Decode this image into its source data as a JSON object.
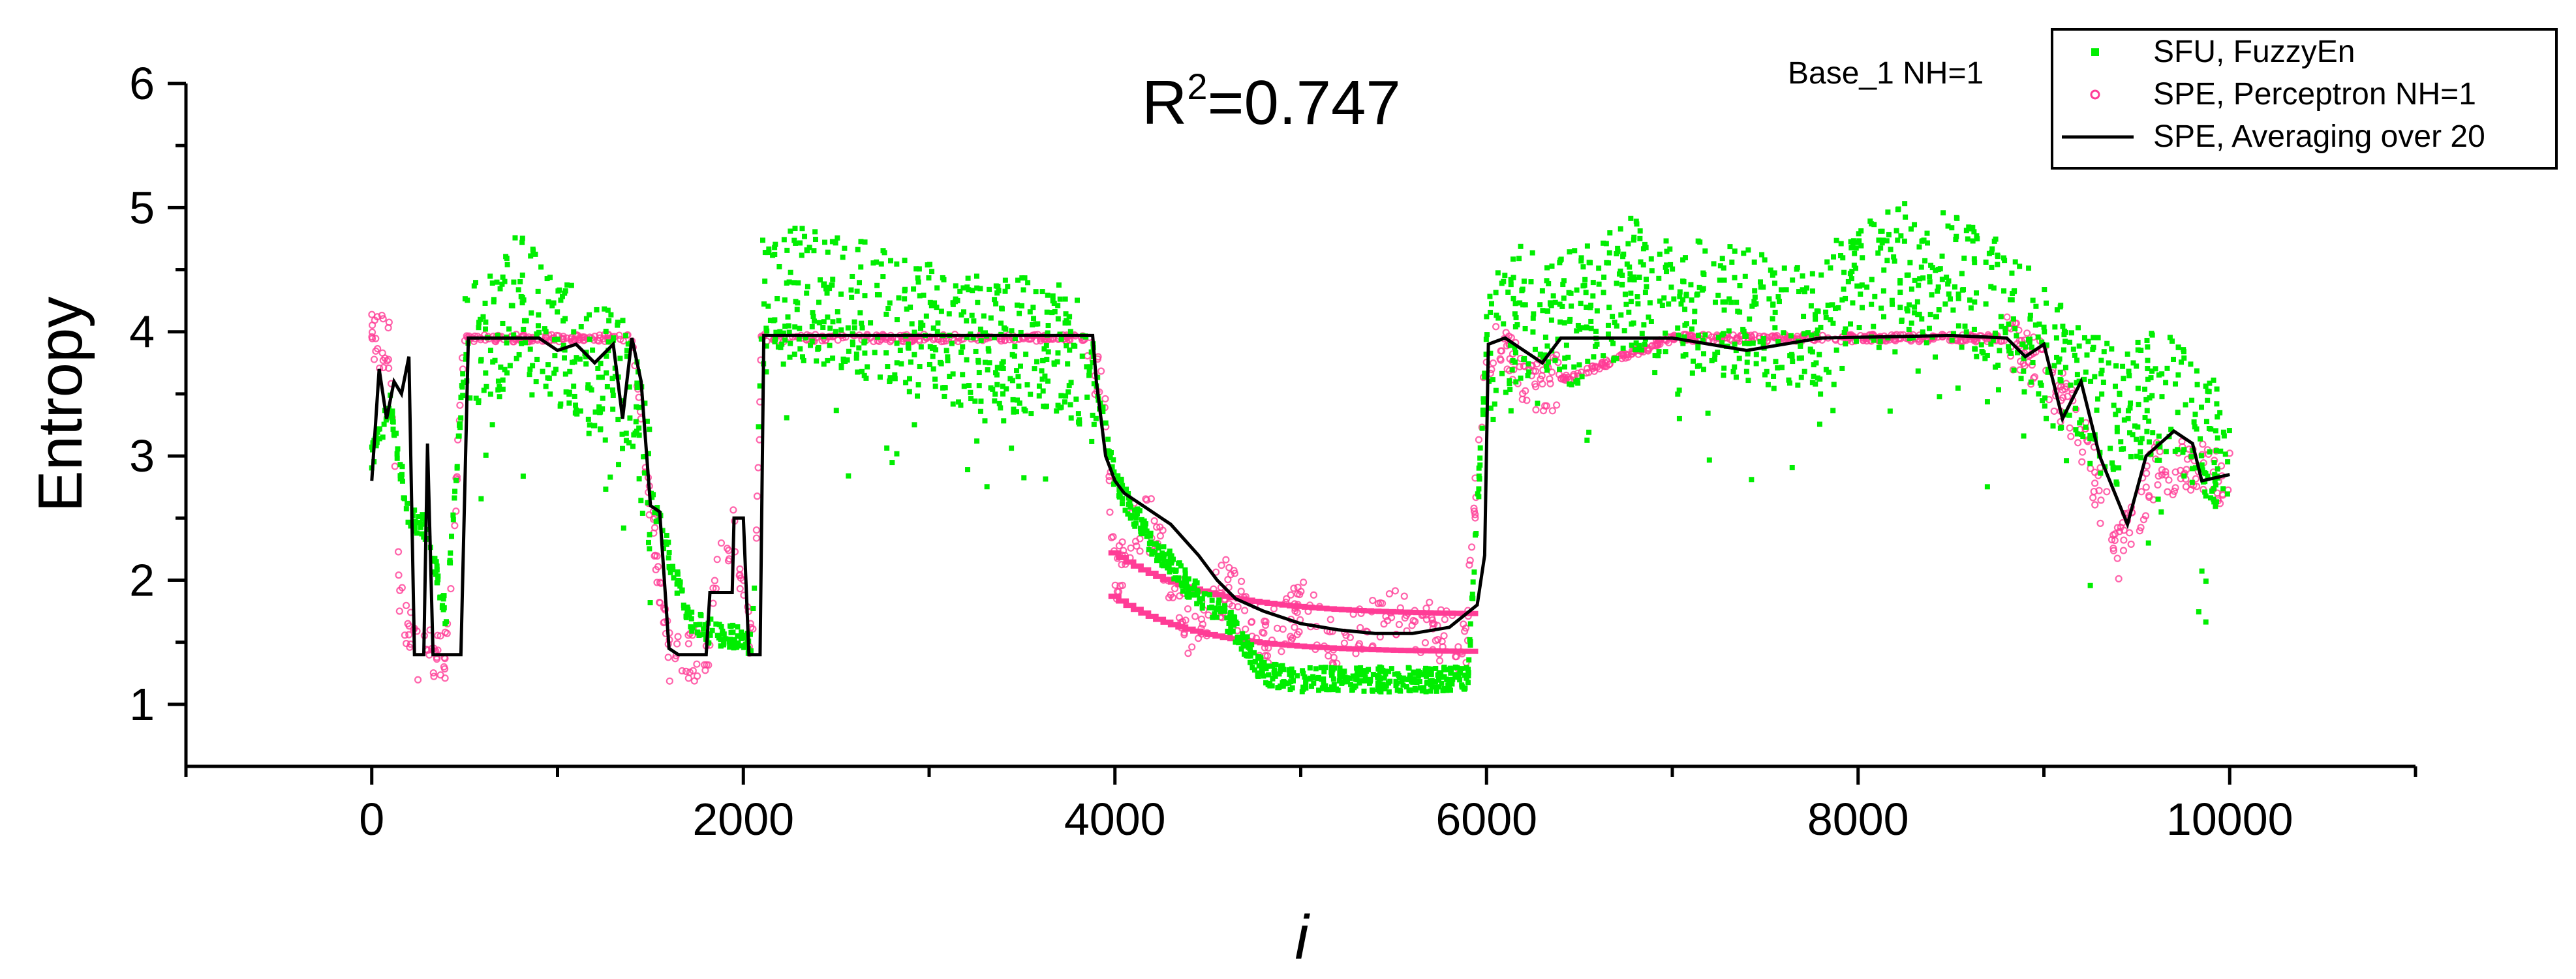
{
  "chart_data": {
    "type": "scatter",
    "title": "R2=0.747",
    "r2_label": "R",
    "r2_sup": "2",
    "r2_value": "=0.747",
    "annotation": "Base_1 NH=1",
    "xlabel": "i",
    "ylabel": "Entropy",
    "xlim": [
      -1000,
      11000
    ],
    "ylim": [
      0.5,
      6
    ],
    "xticks": [
      0,
      2000,
      4000,
      6000,
      8000,
      10000
    ],
    "xtick_labels": [
      "0",
      "2000",
      "4000",
      "6000",
      "8000",
      "10000"
    ],
    "yticks": [
      1,
      2,
      3,
      4,
      5,
      6
    ],
    "ytick_labels": [
      "1",
      "2",
      "3",
      "4",
      "5",
      "6"
    ],
    "legend_position": "top-right",
    "series": [
      {
        "name": "SFU, FuzzyEn",
        "kind": "scatter-square",
        "color": "#00ee00",
        "points_summary": [
          [
            0,
            3.0
          ],
          [
            100,
            3.4
          ],
          [
            200,
            2.5
          ],
          [
            300,
            2.4
          ],
          [
            400,
            1.7
          ],
          [
            500,
            3.8
          ],
          [
            700,
            4.0
          ],
          [
            800,
            4.3
          ],
          [
            1000,
            3.9
          ],
          [
            1200,
            3.7
          ],
          [
            1400,
            3.5
          ],
          [
            1500,
            2.7
          ],
          [
            1600,
            2.2
          ],
          [
            1700,
            1.7
          ],
          [
            1800,
            1.6
          ],
          [
            1900,
            1.55
          ],
          [
            2050,
            1.5
          ],
          [
            2100,
            4.2
          ],
          [
            2300,
            4.3
          ],
          [
            2600,
            4.2
          ],
          [
            3000,
            4.0
          ],
          [
            3200,
            3.9
          ],
          [
            3500,
            3.9
          ],
          [
            3800,
            3.8
          ],
          [
            3900,
            3.6
          ],
          [
            4000,
            2.8
          ],
          [
            4200,
            2.3
          ],
          [
            4400,
            1.95
          ],
          [
            4600,
            1.7
          ],
          [
            4800,
            1.25
          ],
          [
            5000,
            1.2
          ],
          [
            5500,
            1.2
          ],
          [
            5900,
            1.2
          ],
          [
            6000,
            3.9
          ],
          [
            6200,
            4.2
          ],
          [
            6500,
            4.1
          ],
          [
            6800,
            4.4
          ],
          [
            7000,
            4.2
          ],
          [
            7300,
            4.2
          ],
          [
            7600,
            4.0
          ],
          [
            8000,
            4.3
          ],
          [
            8200,
            4.5
          ],
          [
            8500,
            4.4
          ],
          [
            8800,
            4.2
          ],
          [
            9000,
            3.8
          ],
          [
            9200,
            3.5
          ],
          [
            9400,
            3.3
          ],
          [
            9600,
            3.5
          ],
          [
            9800,
            3.3
          ],
          [
            10000,
            2.9
          ]
        ]
      },
      {
        "name": "SPE, Perceptron NH=1",
        "kind": "scatter-dot",
        "color": "#ff3c96",
        "points_summary": [
          [
            0,
            3.95
          ],
          [
            100,
            3.9
          ],
          [
            150,
            1.8
          ],
          [
            250,
            1.4
          ],
          [
            400,
            1.4
          ],
          [
            500,
            3.95
          ],
          [
            1000,
            3.95
          ],
          [
            1400,
            3.95
          ],
          [
            1500,
            2.6
          ],
          [
            1600,
            1.4
          ],
          [
            1800,
            1.4
          ],
          [
            1850,
            1.9
          ],
          [
            1950,
            2.5
          ],
          [
            2050,
            1.4
          ],
          [
            2100,
            3.95
          ],
          [
            3000,
            3.95
          ],
          [
            3850,
            3.95
          ],
          [
            3950,
            3.4
          ],
          [
            4000,
            2.0
          ],
          [
            4100,
            2.4
          ],
          [
            4400,
            1.6
          ],
          [
            4800,
            1.5
          ],
          [
            5200,
            1.45
          ],
          [
            5900,
            1.45
          ],
          [
            4200,
            2.45
          ],
          [
            4600,
            1.95
          ],
          [
            5000,
            1.8
          ],
          [
            5500,
            1.75
          ],
          [
            5900,
            1.9
          ],
          [
            6000,
            3.9
          ],
          [
            6300,
            3.55
          ],
          [
            7000,
            3.95
          ],
          [
            8000,
            3.95
          ],
          [
            8800,
            3.95
          ],
          [
            9000,
            3.7
          ],
          [
            9200,
            3.2
          ],
          [
            9400,
            2.2
          ],
          [
            9600,
            2.9
          ],
          [
            9800,
            2.9
          ],
          [
            10000,
            2.8
          ]
        ]
      },
      {
        "name": "SPE, Averaging over 20",
        "kind": "line",
        "color": "#000000",
        "points": [
          [
            0,
            2.8
          ],
          [
            40,
            3.7
          ],
          [
            80,
            3.3
          ],
          [
            120,
            3.6
          ],
          [
            160,
            3.5
          ],
          [
            200,
            3.8
          ],
          [
            230,
            1.4
          ],
          [
            280,
            1.4
          ],
          [
            300,
            3.1
          ],
          [
            330,
            1.4
          ],
          [
            480,
            1.4
          ],
          [
            520,
            3.95
          ],
          [
            900,
            3.95
          ],
          [
            1000,
            3.85
          ],
          [
            1100,
            3.9
          ],
          [
            1200,
            3.75
          ],
          [
            1300,
            3.9
          ],
          [
            1350,
            3.3
          ],
          [
            1400,
            3.95
          ],
          [
            1450,
            3.6
          ],
          [
            1500,
            2.6
          ],
          [
            1550,
            2.55
          ],
          [
            1600,
            1.45
          ],
          [
            1650,
            1.4
          ],
          [
            1800,
            1.4
          ],
          [
            1820,
            1.9
          ],
          [
            1940,
            1.9
          ],
          [
            1950,
            2.5
          ],
          [
            2000,
            2.5
          ],
          [
            2030,
            1.4
          ],
          [
            2090,
            1.4
          ],
          [
            2110,
            3.97
          ],
          [
            3000,
            3.97
          ],
          [
            3880,
            3.97
          ],
          [
            3900,
            3.6
          ],
          [
            3950,
            3.0
          ],
          [
            4000,
            2.8
          ],
          [
            4050,
            2.7
          ],
          [
            4150,
            2.6
          ],
          [
            4300,
            2.45
          ],
          [
            4450,
            2.2
          ],
          [
            4550,
            2.0
          ],
          [
            4650,
            1.85
          ],
          [
            4800,
            1.75
          ],
          [
            5000,
            1.65
          ],
          [
            5200,
            1.6
          ],
          [
            5400,
            1.57
          ],
          [
            5600,
            1.57
          ],
          [
            5800,
            1.62
          ],
          [
            5950,
            1.8
          ],
          [
            5990,
            2.2
          ],
          [
            6010,
            3.9
          ],
          [
            6100,
            3.95
          ],
          [
            6300,
            3.75
          ],
          [
            6400,
            3.95
          ],
          [
            7000,
            3.95
          ],
          [
            7400,
            3.85
          ],
          [
            7600,
            3.9
          ],
          [
            7800,
            3.95
          ],
          [
            8500,
            3.97
          ],
          [
            8800,
            3.95
          ],
          [
            8900,
            3.8
          ],
          [
            9000,
            3.9
          ],
          [
            9100,
            3.3
          ],
          [
            9200,
            3.6
          ],
          [
            9300,
            3.0
          ],
          [
            9450,
            2.45
          ],
          [
            9550,
            3.0
          ],
          [
            9700,
            3.2
          ],
          [
            9800,
            3.1
          ],
          [
            9850,
            2.8
          ],
          [
            10000,
            2.85
          ]
        ]
      }
    ]
  }
}
